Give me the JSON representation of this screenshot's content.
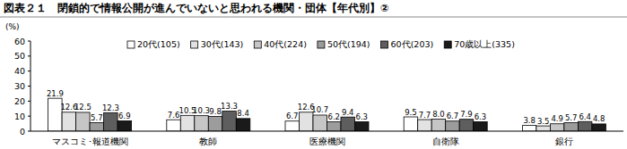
{
  "chart_data": {
    "type": "bar",
    "title": "図表２１　閉鎖的で情報公開が進んでいないと思われる機関・団体【年代別】②",
    "y_label": "(%)",
    "categories": [
      "マスコミ･報道機関",
      "教師",
      "医療機関",
      "自衛隊",
      "銀行"
    ],
    "series": [
      {
        "name": "20代(105)",
        "color": "#ffffff",
        "values": [
          21.9,
          7.6,
          6.7,
          9.5,
          3.8
        ]
      },
      {
        "name": "30代(143)",
        "color": "#e2e2e2",
        "values": [
          12.6,
          10.5,
          12.6,
          7.7,
          3.5
        ]
      },
      {
        "name": "40代(224)",
        "color": "#c6c6c6",
        "values": [
          12.5,
          10.3,
          10.7,
          8.0,
          4.9
        ],
        "value_labels": [
          "12.5",
          "10.3",
          "10.7",
          "8.0",
          "4.9"
        ]
      },
      {
        "name": "50代(194)",
        "color": "#9c9c9c",
        "values": [
          5.7,
          9.8,
          6.2,
          6.7,
          5.7
        ]
      },
      {
        "name": "60代(203)",
        "color": "#5e5e5e",
        "values": [
          12.3,
          13.3,
          9.4,
          7.9,
          6.4
        ]
      },
      {
        "name": "70歳以上(335)",
        "color": "#1a1a1a",
        "values": [
          6.9,
          8.4,
          6.3,
          6.3,
          4.8
        ]
      }
    ],
    "ylim": [
      0,
      60
    ],
    "yticks": [
      0,
      10,
      20,
      30,
      40,
      50,
      60
    ],
    "grid": false,
    "legend": "top",
    "data_labels": true
  }
}
